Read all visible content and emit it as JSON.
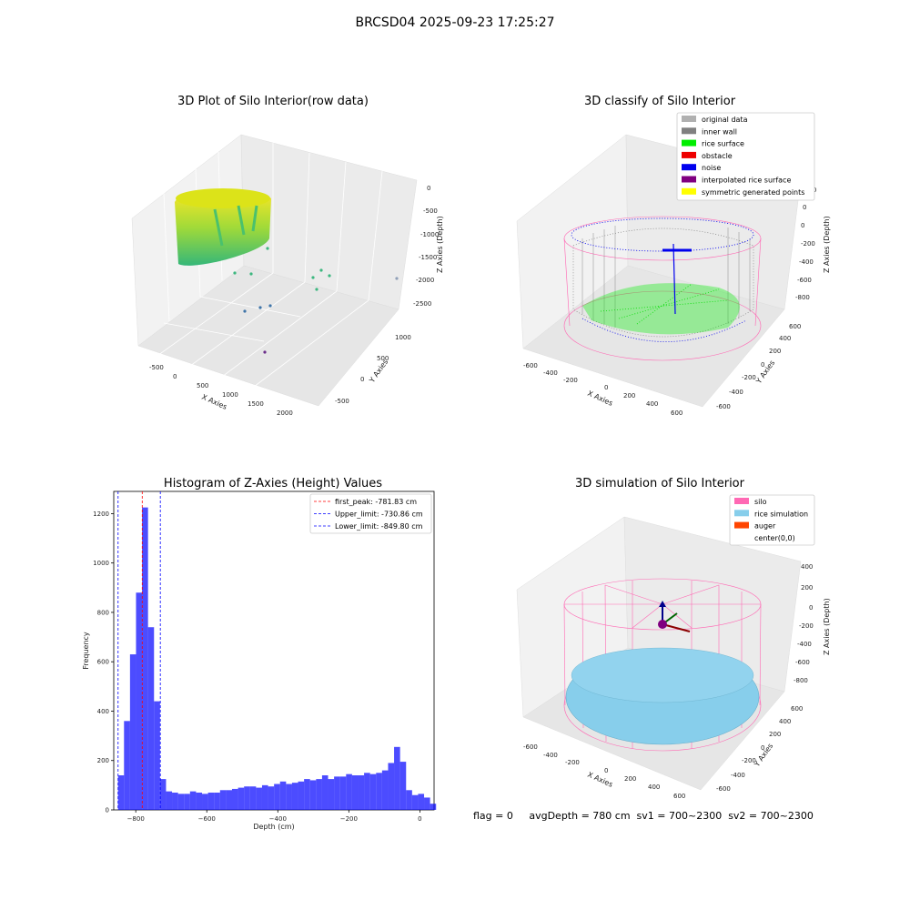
{
  "suptitle": "BRCSD04 2025-09-23 17:25:27",
  "panels": {
    "raw": {
      "title": "3D Plot of Silo Interior(row data)",
      "x_label": "X Axies",
      "y_label": "Y Axies",
      "z_label": "Z Axies (Depth)",
      "x_ticks": [
        "-500",
        "0",
        "500",
        "1000",
        "1500",
        "2000"
      ],
      "y_ticks": [
        "-500",
        "0",
        "500",
        "1000"
      ],
      "z_ticks": [
        "0",
        "-500",
        "-1000",
        "-1500",
        "-2000",
        "-2500"
      ]
    },
    "classify": {
      "title": "3D classify of Silo Interior",
      "x_label": "X Axies",
      "y_label": "Y Axies",
      "z_label": "Z Axies (Depth)",
      "x_ticks": [
        "-600",
        "-400",
        "-200",
        "0",
        "200",
        "400",
        "600"
      ],
      "y_ticks": [
        "-600",
        "-400",
        "-200",
        "0",
        "200",
        "400",
        "600"
      ],
      "z_ticks": [
        "200",
        "0",
        "-200",
        "-400",
        "-600",
        "-800"
      ],
      "z_top_tick": "0",
      "legend": [
        {
          "label": "original data",
          "color": "#b0b0b0"
        },
        {
          "label": "inner wall",
          "color": "#808080"
        },
        {
          "label": "rice surface",
          "color": "#00ee00"
        },
        {
          "label": "obstacle",
          "color": "#ee0000"
        },
        {
          "label": "noise",
          "color": "#0000ee"
        },
        {
          "label": "interpolated rice surface",
          "color": "#800080"
        },
        {
          "label": "symmetric generated points",
          "color": "#ffff00"
        }
      ]
    },
    "simulation": {
      "title": "3D simulation of Silo Interior",
      "x_label": "X Axies",
      "y_label": "Y Axies",
      "z_label": "Z Axies (Depth)",
      "x_ticks": [
        "-600",
        "-400",
        "-200",
        "0",
        "200",
        "400",
        "600"
      ],
      "y_ticks": [
        "-600",
        "-400",
        "-200",
        "0",
        "200",
        "400",
        "600"
      ],
      "z_ticks": [
        "400",
        "200",
        "0",
        "-200",
        "-400",
        "-600",
        "-800"
      ],
      "legend": [
        {
          "label": "silo",
          "color": "#ff69b4"
        },
        {
          "label": "rice simulation",
          "color": "#87ceeb"
        },
        {
          "label": "auger",
          "color": "#ff4500"
        },
        {
          "label": "center(0,0)",
          "color": "#ffffff"
        }
      ]
    }
  },
  "chart_data": [
    {
      "type": "bar",
      "title": "Histogram of Z-Axies (Height) Values",
      "xlabel": "Depth (cm)",
      "ylabel": "Frequency",
      "xlim": [
        -862,
        40
      ],
      "ylim": [
        0,
        1290
      ],
      "x_ticks": [
        -800,
        -600,
        -400,
        -200,
        0
      ],
      "y_ticks": [
        0,
        200,
        400,
        600,
        800,
        1000,
        1200
      ],
      "bin_start": -850,
      "bin_width": 16.9,
      "values": [
        140,
        360,
        630,
        880,
        1225,
        740,
        440,
        125,
        75,
        70,
        65,
        65,
        75,
        70,
        65,
        70,
        70,
        80,
        80,
        85,
        90,
        95,
        95,
        90,
        100,
        95,
        105,
        115,
        105,
        110,
        115,
        125,
        120,
        125,
        140,
        125,
        135,
        135,
        145,
        140,
        140,
        150,
        145,
        150,
        160,
        190,
        255,
        195,
        80,
        60,
        65,
        50,
        25
      ],
      "color": "#0000ff",
      "vlines": [
        {
          "x": -781.83,
          "label": "first_peak: -781.83 cm",
          "color": "#ff0000"
        },
        {
          "x": -730.86,
          "label": "Upper_limit: -730.86 cm",
          "color": "#0000ff"
        },
        {
          "x": -849.8,
          "label": "Lower_limit: -849.80 cm",
          "color": "#0000ff"
        }
      ],
      "legend_position": "top-right"
    }
  ],
  "footer": "flag = 0     avgDepth = 780 cm  sv1 = 700~2300  sv2 = 700~2300"
}
